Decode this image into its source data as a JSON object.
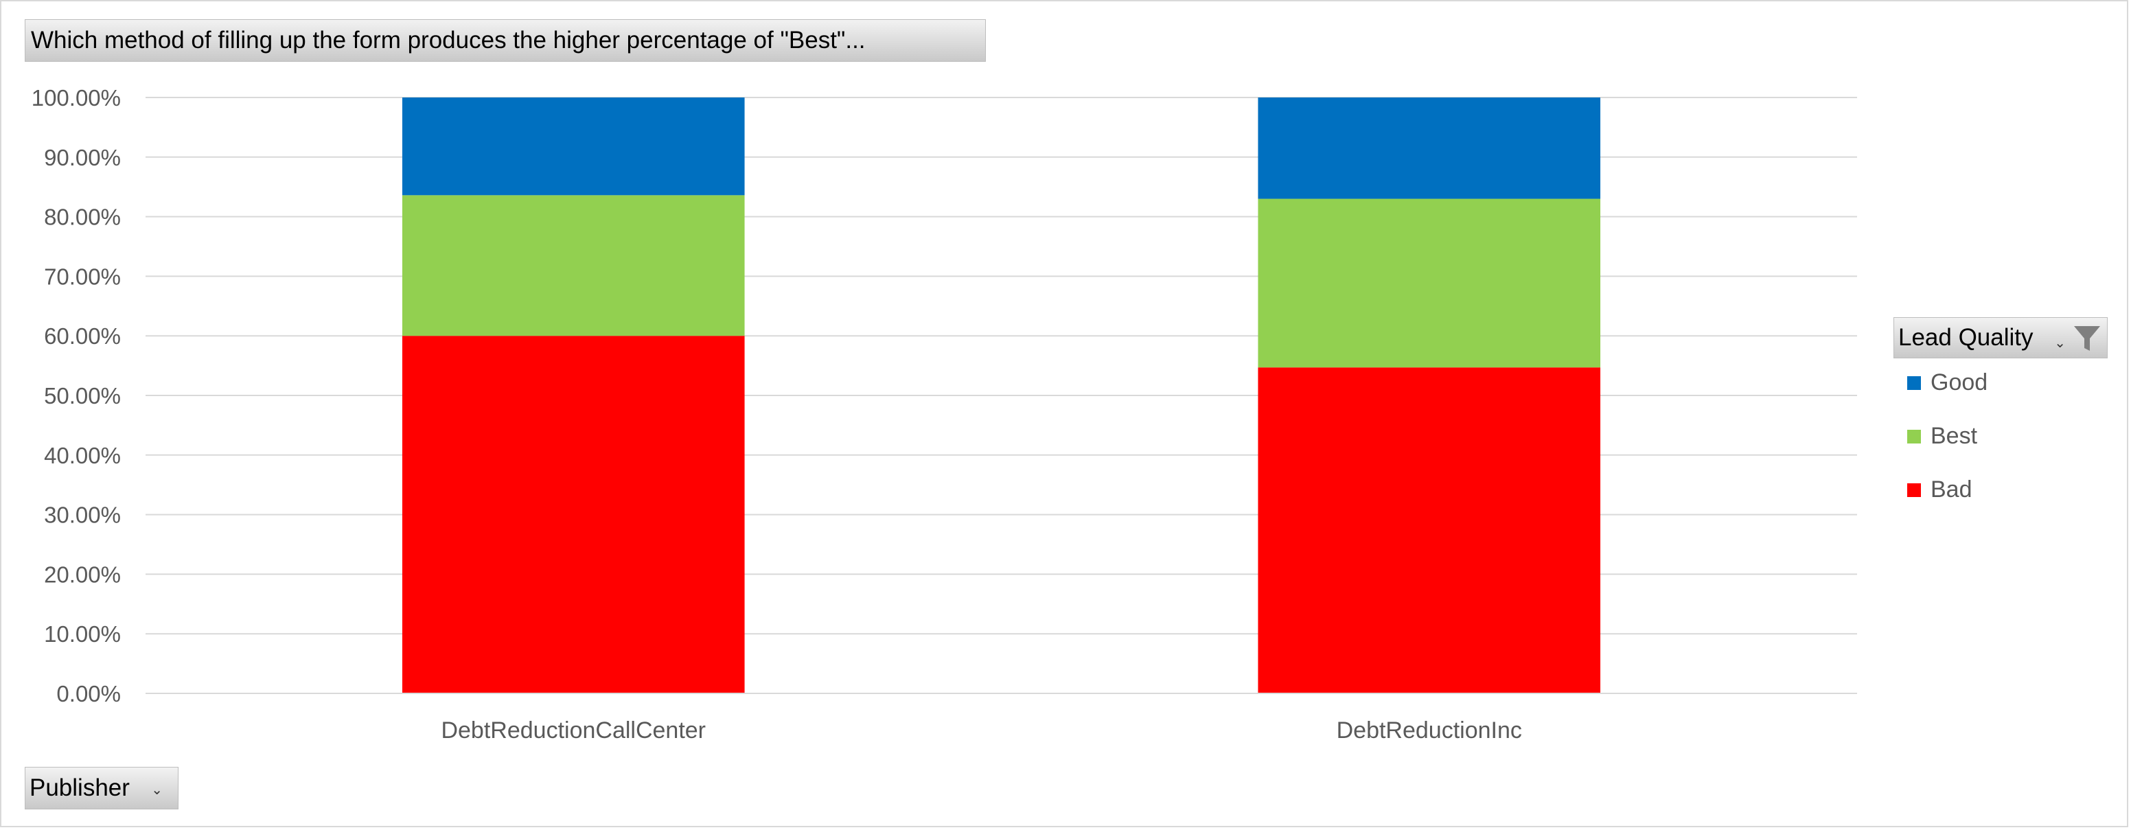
{
  "chart_title": "Which method of filling up the form produces the higher percentage of \"Best\"...",
  "legend": {
    "title": "Lead Quality",
    "filter_icon": "filter-icon",
    "dropdown_icon": "dropdown-arrow-icon",
    "items": [
      {
        "label": "Good",
        "color": "#0070C0"
      },
      {
        "label": "Best",
        "color": "#92D050"
      },
      {
        "label": "Bad",
        "color": "#FF0000"
      }
    ]
  },
  "axis_field": {
    "label": "Publisher",
    "dropdown_icon": "dropdown-arrow-icon"
  },
  "chart_data": {
    "type": "bar",
    "stacked": true,
    "percent": true,
    "title": "Which method of filling up the form produces the higher percentage of \"Best\"...",
    "categories": [
      "DebtReductionCallCenter",
      "DebtReductionInc"
    ],
    "series": [
      {
        "name": "Bad",
        "color": "#FF0000",
        "values": [
          60.0,
          54.7
        ]
      },
      {
        "name": "Best",
        "color": "#92D050",
        "values": [
          23.6,
          28.3
        ]
      },
      {
        "name": "Good",
        "color": "#0070C0",
        "values": [
          16.4,
          17.0
        ]
      }
    ],
    "yticks": [
      "0.00%",
      "10.00%",
      "20.00%",
      "30.00%",
      "40.00%",
      "50.00%",
      "60.00%",
      "70.00%",
      "80.00%",
      "90.00%",
      "100.00%"
    ],
    "ylim": [
      0,
      100
    ],
    "grid": true,
    "legend_position": "right"
  }
}
